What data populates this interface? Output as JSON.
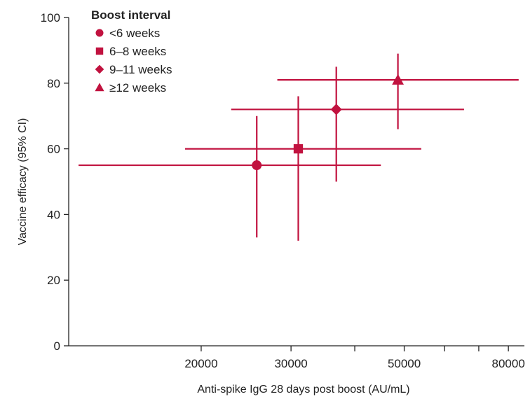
{
  "chart_data": {
    "type": "scatter",
    "title": "",
    "xlabel": "Anti-spike IgG 28 days post boost (AU/mL)",
    "ylabel": "Vaccine efficacy (95% CI)",
    "x_scale": "log",
    "xlim": [
      11000,
      86000
    ],
    "ylim": [
      0,
      100
    ],
    "x_ticks": [
      {
        "value": 20000,
        "label": "20000"
      },
      {
        "value": 30000,
        "label": "30000"
      },
      {
        "value": 40000,
        "label": ""
      },
      {
        "value": 50000,
        "label": "50000"
      },
      {
        "value": 60000,
        "label": ""
      },
      {
        "value": 70000,
        "label": ""
      },
      {
        "value": 80000,
        "label": "80000"
      }
    ],
    "y_ticks": [
      {
        "value": 0,
        "label": "0"
      },
      {
        "value": 20,
        "label": "20"
      },
      {
        "value": 40,
        "label": "40"
      },
      {
        "value": 60,
        "label": "60"
      },
      {
        "value": 80,
        "label": "80"
      },
      {
        "value": 100,
        "label": "100"
      }
    ],
    "grid": false,
    "color": "#C1123F",
    "legend": {
      "title": "Boost interval",
      "placement": "top-left"
    },
    "series": [
      {
        "name": "<6 weeks",
        "marker": "circle",
        "x": 25700,
        "y": 55,
        "x_ci": [
          11500,
          45000
        ],
        "y_ci": [
          33,
          70
        ]
      },
      {
        "name": "6–8 weeks",
        "marker": "square",
        "x": 31000,
        "y": 60,
        "x_ci": [
          18600,
          54000
        ],
        "y_ci": [
          32,
          76
        ]
      },
      {
        "name": "9–11 weeks",
        "marker": "diamond",
        "x": 36800,
        "y": 72,
        "x_ci": [
          22900,
          65500
        ],
        "y_ci": [
          50,
          85
        ]
      },
      {
        "name": "≥12 weeks",
        "marker": "triangle",
        "x": 48600,
        "y": 81,
        "x_ci": [
          28200,
          83800
        ],
        "y_ci": [
          66,
          89
        ]
      }
    ]
  }
}
